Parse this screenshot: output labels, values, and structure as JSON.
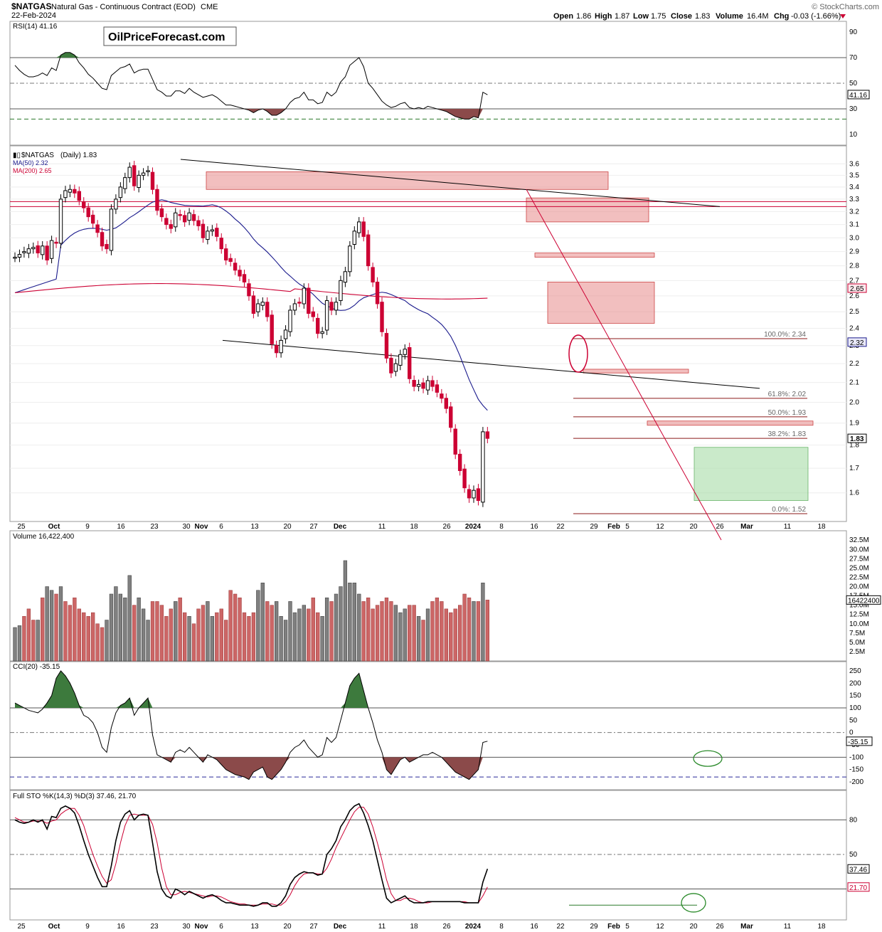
{
  "header": {
    "symbol": "$NATGAS",
    "description": "Natural Gas - Continuous Contract (EOD)",
    "exchange": "CME",
    "date": "22-Feb-2024",
    "open_label": "Open",
    "open": "1.86",
    "high_label": "High",
    "high": "1.87",
    "low_label": "Low",
    "low": "1.75",
    "close_label": "Close",
    "close": "1.83",
    "volume_label": "Volume",
    "volume": "16.4M",
    "chg_label": "Chg",
    "chg": "-0.03 (-1.66%)",
    "copyright": "© StockCharts.com",
    "watermark": "OilPriceForecast.com"
  },
  "colors": {
    "up": "#000000",
    "down": "#cc0033",
    "ma50": "#1a1a8c",
    "ma200": "#cc0033",
    "rsi_fill": "#3d7a3d",
    "neg_fill": "#8b4a4a",
    "vol_up": "#808080",
    "vol_down": "#cc6666",
    "zone": "#e88a8a",
    "target": "#a6dca6"
  },
  "chart_data": {
    "type": "candlestick",
    "dates": [
      "Sep 25",
      "Sep 26",
      "Sep 27",
      "Sep 28",
      "Sep 29",
      "Oct 2",
      "Oct 3",
      "Oct 4",
      "Oct 5",
      "Oct 6",
      "Oct 9",
      "Oct 10",
      "Oct 11",
      "Oct 12",
      "Oct 13",
      "Oct 16",
      "Oct 17",
      "Oct 18",
      "Oct 19",
      "Oct 20",
      "Oct 23",
      "Oct 24",
      "Oct 25",
      "Oct 26",
      "Oct 27",
      "Oct 30",
      "Oct 31",
      "Nov 1",
      "Nov 2",
      "Nov 3",
      "Nov 6",
      "Nov 7",
      "Nov 8",
      "Nov 9",
      "Nov 10",
      "Nov 13",
      "Nov 14",
      "Nov 15",
      "Nov 16",
      "Nov 17",
      "Nov 20",
      "Nov 21",
      "Nov 22",
      "Nov 24",
      "Nov 27",
      "Nov 28",
      "Nov 29",
      "Nov 30",
      "Dec 1",
      "Dec 4",
      "Dec 5",
      "Dec 6",
      "Dec 7",
      "Dec 8",
      "Dec 11",
      "Dec 12",
      "Dec 13",
      "Dec 14",
      "Dec 15",
      "Dec 18",
      "Dec 19",
      "Dec 20",
      "Dec 21",
      "Dec 22",
      "Dec 26",
      "Dec 27",
      "Dec 28",
      "Dec 29",
      "Jan 2",
      "Jan 3",
      "Jan 4",
      "Jan 5",
      "Jan 8",
      "Jan 9",
      "Jan 10",
      "Jan 11",
      "Jan 12",
      "Jan 16",
      "Jan 17",
      "Jan 18",
      "Jan 19",
      "Jan 22",
      "Jan 23",
      "Jan 24",
      "Jan 25",
      "Jan 26",
      "Jan 29",
      "Jan 30",
      "Jan 31",
      "Feb 1",
      "Feb 2",
      "Feb 5",
      "Feb 6",
      "Feb 7",
      "Feb 8",
      "Feb 9",
      "Feb 12",
      "Feb 13",
      "Feb 14",
      "Feb 15",
      "Feb 16",
      "Feb 20",
      "Feb 21",
      "Feb 22"
    ],
    "close": [
      2.86,
      2.88,
      2.9,
      2.92,
      2.93,
      2.89,
      2.94,
      2.84,
      2.98,
      2.96,
      3.3,
      3.37,
      3.38,
      3.35,
      3.29,
      3.23,
      3.16,
      3.11,
      3.04,
      2.94,
      2.92,
      3.22,
      3.3,
      3.4,
      3.48,
      3.57,
      3.41,
      3.5,
      3.52,
      3.54,
      3.38,
      3.21,
      3.16,
      3.1,
      3.07,
      3.19,
      3.17,
      3.12,
      3.19,
      3.13,
      3.09,
      3.0,
      3.05,
      3.06,
      3.01,
      2.92,
      2.84,
      2.83,
      2.77,
      2.73,
      2.69,
      2.6,
      2.49,
      2.55,
      2.56,
      2.47,
      2.31,
      2.26,
      2.33,
      2.39,
      2.51,
      2.55,
      2.56,
      2.65,
      2.49,
      2.47,
      2.37,
      2.38,
      2.57,
      2.51,
      2.56,
      2.7,
      2.76,
      2.94,
      3.05,
      3.12,
      3.01,
      2.8,
      2.69,
      2.55,
      2.38,
      2.23,
      2.15,
      2.2,
      2.25,
      2.28,
      2.12,
      2.08,
      2.09,
      2.07,
      2.11,
      2.08,
      2.05,
      2.02,
      1.97,
      1.88,
      1.76,
      1.69,
      1.62,
      1.58,
      1.61,
      1.57,
      1.86,
      1.83
    ],
    "ohlc_note": "Daily candles, up = black, down = red",
    "ma50": {
      "name": "MA(50)",
      "last": 2.32
    },
    "ma200": {
      "name": "MA(200)",
      "last": 2.65
    },
    "last_price": "1.83",
    "price_axis": {
      "ticks": [
        1.6,
        1.7,
        1.8,
        1.9,
        2.0,
        2.1,
        2.2,
        2.3,
        2.4,
        2.5,
        2.6,
        2.7,
        2.8,
        2.9,
        3.0,
        3.1,
        3.2,
        3.3,
        3.4,
        3.5,
        3.6
      ],
      "log": true
    },
    "x_ticks": [
      "25",
      "Oct",
      "9",
      "16",
      "23",
      "30",
      "Nov",
      "6",
      "13",
      "20",
      "27",
      "Dec",
      "11",
      "18",
      "26",
      "2024",
      "8",
      "16",
      "22",
      "29",
      "Feb",
      "5",
      "12",
      "20",
      "26",
      "Mar",
      "11",
      "18"
    ],
    "fibonacci": [
      {
        "label": "100.0%: 2.34",
        "value": 2.34
      },
      {
        "label": "61.8%: 2.02",
        "value": 2.02
      },
      {
        "label": "50.0%: 1.93",
        "value": 1.93
      },
      {
        "label": "38.2%: 1.83",
        "value": 1.83
      },
      {
        "label": "0.0%: 1.52",
        "value": 1.52
      }
    ],
    "resistance_lines": [
      3.28,
      3.24
    ],
    "zones": [
      {
        "from": 3.38,
        "to": 3.53
      },
      {
        "from": 3.12,
        "to": 3.31
      },
      {
        "from": 2.86,
        "to": 2.89
      },
      {
        "from": 2.43,
        "to": 2.69
      },
      {
        "from": 2.15,
        "to": 2.17
      },
      {
        "from": 1.89,
        "to": 1.91
      }
    ],
    "target_zone": {
      "from": 1.57,
      "to": 1.79
    },
    "rsi": {
      "title": "RSI(14) 41.16",
      "last": "41.16",
      "ticks": [
        10,
        30,
        50,
        70,
        90
      ],
      "values": [
        64,
        60,
        57,
        55,
        55,
        56,
        58,
        56,
        62,
        60,
        72,
        74,
        74,
        72,
        66,
        62,
        57,
        54,
        50,
        46,
        45,
        56,
        59,
        62,
        63,
        65,
        58,
        60,
        61,
        61,
        53,
        45,
        43,
        40,
        40,
        44,
        44,
        42,
        46,
        43,
        41,
        39,
        40,
        41,
        39,
        36,
        33,
        33,
        32,
        31,
        30,
        29,
        27,
        29,
        30,
        28,
        25,
        25,
        27,
        30,
        35,
        38,
        39,
        43,
        37,
        37,
        34,
        35,
        43,
        40,
        43,
        51,
        55,
        64,
        67,
        70,
        63,
        50,
        46,
        41,
        36,
        33,
        31,
        32,
        34,
        35,
        31,
        30,
        31,
        30,
        32,
        31,
        30,
        29,
        28,
        26,
        24,
        23,
        22,
        22,
        24,
        23,
        43,
        41
      ]
    },
    "volume": {
      "title": "Volume 16,422,400",
      "last": "16422400",
      "ticks": [
        "2.5M",
        "5.0M",
        "7.5M",
        "10.0M",
        "12.5M",
        "15.0M",
        "17.5M",
        "20.0M",
        "22.5M",
        "25.0M",
        "27.5M",
        "30.0M",
        "32.5M"
      ],
      "values": [
        9,
        9.5,
        12,
        14,
        11,
        11,
        17,
        20,
        19,
        18,
        20,
        16,
        15,
        17,
        14,
        13,
        12,
        13,
        10,
        9,
        11,
        18,
        20,
        18,
        17,
        23,
        15,
        17,
        14,
        11,
        16,
        16,
        15,
        12,
        14,
        16,
        17,
        13,
        12,
        10,
        14,
        15,
        16,
        12,
        13,
        14,
        11,
        19,
        18,
        17,
        13,
        12,
        13,
        19,
        21,
        16,
        15,
        16,
        12,
        11,
        16,
        13,
        14,
        15,
        14,
        17,
        13,
        12,
        17,
        16,
        18,
        20,
        27,
        21,
        21,
        18,
        16,
        17,
        14,
        15,
        16,
        17,
        16,
        15,
        13,
        14,
        15,
        15,
        12,
        11,
        14,
        16,
        17,
        16,
        14,
        13,
        14,
        15,
        18,
        17,
        16,
        16,
        21,
        16.4
      ],
      "up": [
        true,
        true,
        false,
        false,
        false,
        true,
        false,
        true,
        true,
        false,
        true,
        false,
        false,
        false,
        false,
        false,
        false,
        false,
        false,
        false,
        true,
        true,
        true,
        true,
        true,
        true,
        false,
        true,
        true,
        true,
        false,
        false,
        false,
        false,
        false,
        true,
        false,
        false,
        true,
        false,
        false,
        false,
        true,
        true,
        false,
        false,
        false,
        false,
        false,
        false,
        false,
        false,
        false,
        true,
        true,
        false,
        false,
        true,
        true,
        true,
        true,
        true,
        true,
        true,
        false,
        false,
        false,
        true,
        true,
        false,
        true,
        true,
        true,
        true,
        true,
        true,
        false,
        false,
        false,
        false,
        false,
        false,
        false,
        true,
        true,
        true,
        false,
        false,
        true,
        false,
        true,
        false,
        false,
        false,
        false,
        false,
        false,
        false,
        false,
        false,
        true,
        false,
        true,
        false
      ]
    },
    "cci": {
      "title": "CCI(20) -35.15",
      "last": "-35.15",
      "ticks": [
        -200,
        -150,
        -100,
        -50,
        0,
        50,
        100,
        150,
        200,
        250
      ],
      "values": [
        120,
        110,
        100,
        90,
        85,
        80,
        95,
        120,
        150,
        220,
        250,
        230,
        200,
        160,
        110,
        70,
        60,
        40,
        0,
        -60,
        -80,
        20,
        80,
        110,
        120,
        140,
        70,
        100,
        120,
        140,
        -10,
        -90,
        -100,
        -110,
        -120,
        -80,
        -70,
        -80,
        -60,
        -80,
        -100,
        -120,
        -90,
        -100,
        -110,
        -130,
        -150,
        -160,
        -170,
        -175,
        -180,
        -190,
        -160,
        -150,
        -140,
        -180,
        -190,
        -170,
        -150,
        -120,
        -80,
        -60,
        -50,
        -30,
        -60,
        -80,
        -100,
        -90,
        -20,
        -40,
        -20,
        50,
        120,
        190,
        220,
        240,
        170,
        100,
        40,
        -30,
        -80,
        -150,
        -170,
        -140,
        -110,
        -100,
        -120,
        -110,
        -100,
        -90,
        -90,
        -80,
        -90,
        -100,
        -120,
        -140,
        -160,
        -170,
        -180,
        -190,
        -170,
        -150,
        -40,
        -35
      ]
    },
    "sto": {
      "title": "Full STO %K(14,3) %D(3) 37.46, 21.70",
      "k_last": "37.46",
      "d_last": "21.70",
      "ticks": [
        20,
        50,
        80
      ],
      "k": [
        80,
        78,
        77,
        78,
        80,
        78,
        80,
        72,
        83,
        82,
        90,
        92,
        90,
        86,
        75,
        62,
        50,
        40,
        30,
        22,
        22,
        40,
        62,
        78,
        85,
        88,
        80,
        84,
        85,
        84,
        60,
        35,
        20,
        14,
        12,
        20,
        18,
        15,
        18,
        16,
        14,
        12,
        14,
        15,
        13,
        10,
        8,
        8,
        7,
        6,
        6,
        6,
        5,
        6,
        8,
        8,
        5,
        5,
        8,
        14,
        24,
        30,
        33,
        35,
        34,
        34,
        32,
        33,
        50,
        55,
        62,
        74,
        80,
        88,
        92,
        94,
        86,
        75,
        62,
        45,
        28,
        12,
        8,
        10,
        12,
        14,
        10,
        8,
        8,
        8,
        9,
        9,
        9,
        9,
        9,
        9,
        9,
        9,
        8,
        8,
        8,
        8,
        26,
        37.46
      ],
      "d": [
        82,
        80,
        78,
        78,
        79,
        79,
        79,
        77,
        79,
        80,
        85,
        88,
        90,
        90,
        84,
        75,
        62,
        50,
        40,
        31,
        25,
        28,
        42,
        60,
        75,
        84,
        85,
        84,
        84,
        84,
        76,
        60,
        38,
        22,
        15,
        15,
        17,
        18,
        17,
        16,
        15,
        14,
        13,
        14,
        14,
        13,
        11,
        9,
        8,
        7,
        7,
        6,
        6,
        6,
        7,
        7,
        7,
        6,
        6,
        9,
        15,
        23,
        29,
        33,
        34,
        34,
        33,
        33,
        38,
        46,
        56,
        64,
        72,
        80,
        87,
        91,
        91,
        85,
        74,
        60,
        45,
        28,
        16,
        10,
        10,
        12,
        12,
        11,
        9,
        8,
        8,
        9,
        9,
        9,
        9,
        9,
        9,
        9,
        9,
        8,
        8,
        8,
        14,
        21.7
      ]
    }
  }
}
